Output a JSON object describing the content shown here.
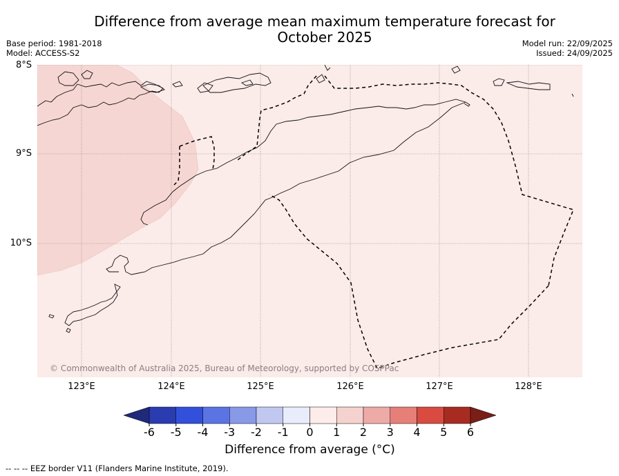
{
  "title_line1": "Difference from average mean maximum temperature forecast for",
  "title_line2": "October 2025",
  "base_period": "Base period: 1981-2018",
  "model": "Model: ACCESS-S2",
  "model_run": "Model run: 22/09/2025",
  "issued": "Issued: 24/09/2025",
  "latitude_labels": [
    "8°S",
    "9°S",
    "10°S"
  ],
  "longitude_labels": [
    "123°E",
    "124°E",
    "125°E",
    "126°E",
    "127°E",
    "128°E"
  ],
  "copyright": "© Commonwealth of Australia 2025, Bureau of Meteorology, supported by COSPPac",
  "colorbar": {
    "title": "Difference from average (°C)",
    "ticks": [
      "-6",
      "-5",
      "-4",
      "-3",
      "-2",
      "-1",
      "0",
      "1",
      "2",
      "3",
      "4",
      "5",
      "6"
    ],
    "colors": [
      "#1f2a7a",
      "#2a3cb0",
      "#3350dc",
      "#5b74e4",
      "#8899e8",
      "#c0c8f2",
      "#e9ecfa",
      "#fcecea",
      "#f6d2cf",
      "#eeaaa6",
      "#e67f78",
      "#d94b40",
      "#a82b22",
      "#7a1e18"
    ],
    "under_color": "#1f2a7a",
    "over_color": "#7a1e18"
  },
  "map": {
    "background_category": "0 to 1",
    "background_color": "#fbebe9",
    "warm_region_category": "1 to 2",
    "warm_region_color": "#f6d6d3"
  },
  "footnote": "-- -- -- EEZ border V11 (Flanders Marine Institute, 2019)."
}
